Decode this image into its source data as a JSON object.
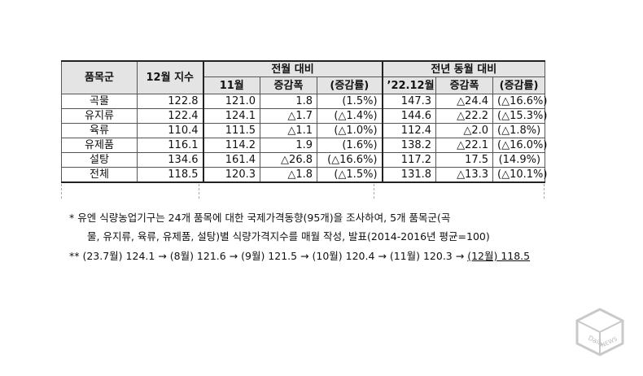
{
  "table": {
    "headers": {
      "category": "품목군",
      "index_dec": "12월 지수",
      "prev_month_group": "전월 대비",
      "prev_year_group": "전년 동월 대비",
      "nov": "11월",
      "change1": "증감폭",
      "rate1": "(증감률)",
      "dec22": "’22.12월",
      "change2": "증감폭",
      "rate2": "(증감률)"
    },
    "rows": [
      {
        "cat": "곡물",
        "idx": "122.8",
        "nov": "121.0",
        "ch1": "1.8",
        "r1": "(1.5%)",
        "dec22": "147.3",
        "ch2": "△24.4",
        "r2": "(△16.6%)"
      },
      {
        "cat": "유지류",
        "idx": "122.4",
        "nov": "124.1",
        "ch1": "△1.7",
        "r1": "(△1.4%)",
        "dec22": "144.6",
        "ch2": "△22.2",
        "r2": "(△15.3%)"
      },
      {
        "cat": "육류",
        "idx": "110.4",
        "nov": "111.5",
        "ch1": "△1.1",
        "r1": "(△1.0%)",
        "dec22": "112.4",
        "ch2": "△2.0",
        "r2": "(△1.8%)"
      },
      {
        "cat": "유제품",
        "idx": "116.1",
        "nov": "114.2",
        "ch1": "1.9",
        "r1": "(1.6%)",
        "dec22": "138.2",
        "ch2": "△22.1",
        "r2": "(△16.0%)"
      },
      {
        "cat": "설탕",
        "idx": "134.6",
        "nov": "161.4",
        "ch1": "△26.8",
        "r1": "(△16.6%)",
        "dec22": "117.2",
        "ch2": "17.5",
        "r2": "(14.9%)"
      },
      {
        "cat": "전체",
        "idx": "118.5",
        "nov": "120.3",
        "ch1": "△1.8",
        "r1": "(△1.5%)",
        "dec22": "131.8",
        "ch2": "△13.3",
        "r2": "(△10.1%)"
      }
    ]
  },
  "notes": {
    "note1_line1": "*  유엔 식량농업기구는 24개 품목에 대한 국제가격동향(95개)을 조사하여, 5개 품목군(곡",
    "note1_line2": "물, 유지류, 육류, 유제품, 설탕)별 식량가격지수를 매월 작성, 발표(2014-2016년 평균=100)",
    "note2_prefix": "**  (23.7월) 124.1 → (8월) 121.6 → (9월) 121.5 → (10월) 120.4 → (11월) 120.3 → ",
    "note2_last": "(12월) 118.5"
  },
  "watermark": {
    "line1": "Daily",
    "line2": "NEWS"
  }
}
